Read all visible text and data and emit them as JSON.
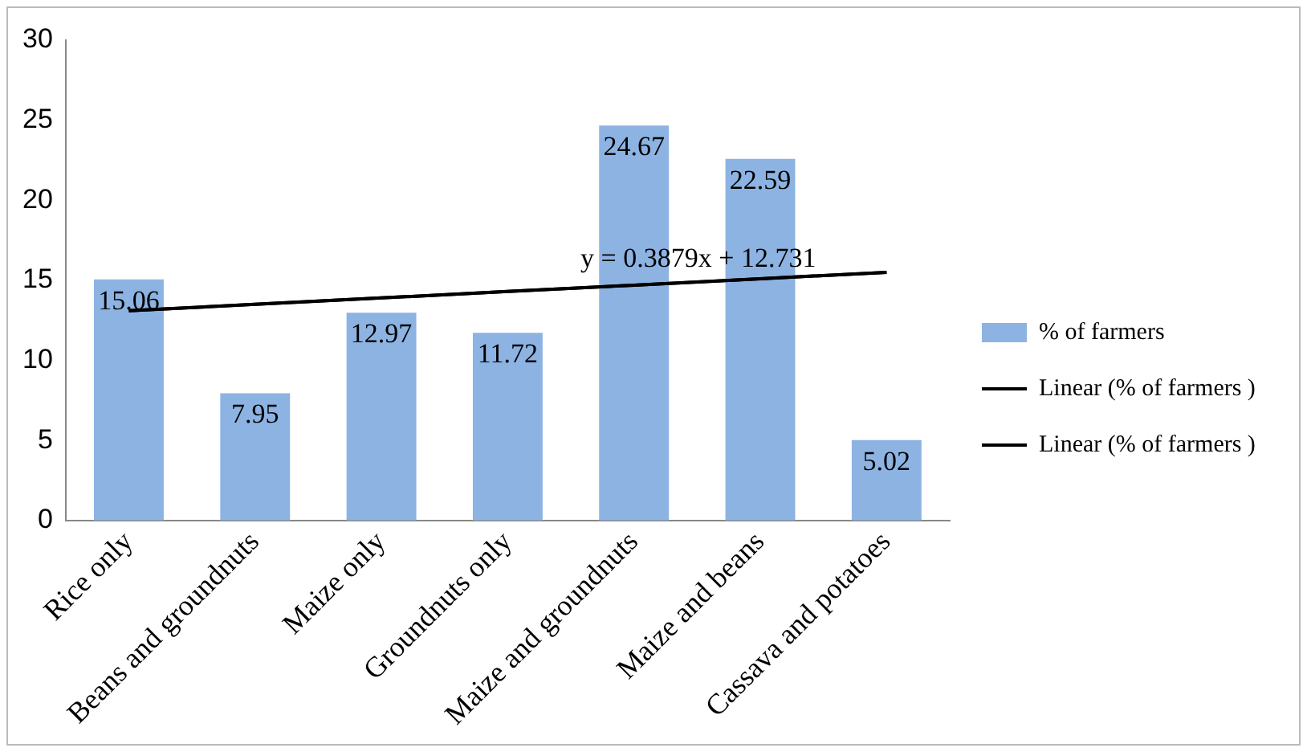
{
  "chart_data": {
    "type": "bar",
    "categories": [
      "Rice only",
      "Beans and groundnuts",
      "Maize only",
      "Groundnuts only",
      "Maize and groundnuts",
      "Maize and beans",
      "Cassava and potatoes"
    ],
    "series": [
      {
        "name": "% of farmers",
        "color": "#8db3e2",
        "values": [
          15.06,
          7.95,
          12.97,
          11.72,
          24.67,
          22.59,
          5.02
        ],
        "value_labels": [
          "15.06",
          "7.95",
          "12.97",
          "11.72",
          "24.67",
          "22.59",
          "5.02"
        ]
      },
      {
        "name": "Linear (% of farmers )",
        "type": "line",
        "color": "#000000",
        "values": [
          13.1,
          13.5,
          13.9,
          14.3,
          14.7,
          15.1,
          15.5
        ]
      },
      {
        "name": "Linear (% of farmers )",
        "type": "line",
        "color": "#000000",
        "values": [
          13.1,
          13.5,
          13.9,
          14.3,
          14.7,
          15.1,
          15.5
        ]
      }
    ],
    "ylim": [
      0,
      30
    ],
    "yticks": [
      0,
      5,
      10,
      15,
      20,
      25,
      30
    ],
    "grid": false,
    "legend": "right",
    "marker": "none",
    "annotations": [
      {
        "text": "y = 0.3879x + 12.731",
        "x": "Maize and groundnuts",
        "y": 14.7
      }
    ]
  }
}
